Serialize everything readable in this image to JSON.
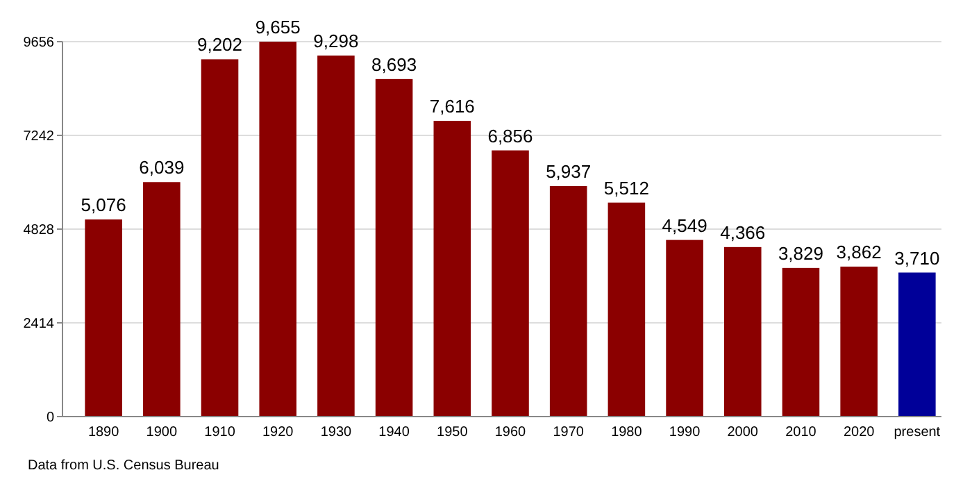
{
  "chart_data": {
    "type": "bar",
    "categories": [
      "1890",
      "1900",
      "1910",
      "1920",
      "1930",
      "1940",
      "1950",
      "1960",
      "1970",
      "1980",
      "1990",
      "2000",
      "2010",
      "2020",
      "present"
    ],
    "values": [
      5076,
      6039,
      9202,
      9655,
      9298,
      8693,
      7616,
      6856,
      5937,
      5512,
      4549,
      4366,
      3829,
      3862,
      3710
    ],
    "colors": [
      "#8b0000",
      "#8b0000",
      "#8b0000",
      "#8b0000",
      "#8b0000",
      "#8b0000",
      "#8b0000",
      "#8b0000",
      "#8b0000",
      "#8b0000",
      "#8b0000",
      "#8b0000",
      "#8b0000",
      "#8b0000",
      "#000099"
    ],
    "value_labels": [
      "5,076",
      "6,039",
      "9,202",
      "9,655",
      "9,298",
      "8,693",
      "7,616",
      "6,856",
      "5,937",
      "5,512",
      "4,549",
      "4,366",
      "3,829",
      "3,862",
      "3,710"
    ],
    "ylim": [
      0,
      9656
    ],
    "yticks": [
      0,
      2414,
      4828,
      7242,
      9656
    ],
    "grid": "y",
    "annotations": [
      "Data from U.S. Census Bureau"
    ]
  }
}
